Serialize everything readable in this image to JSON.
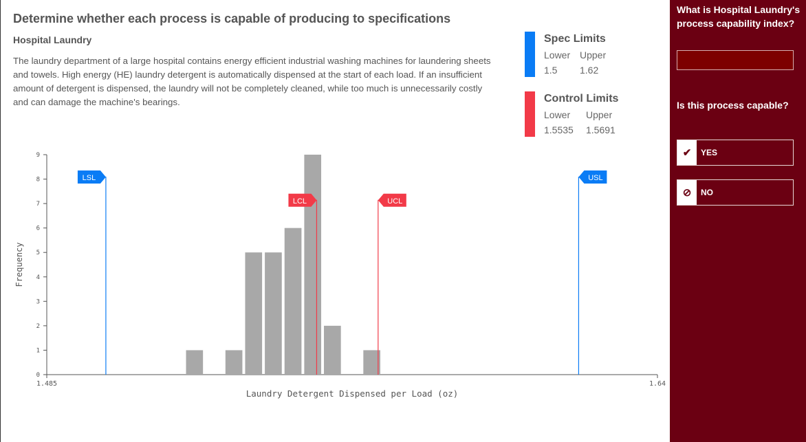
{
  "title": "Determine whether each process is capable of producing to specifications",
  "subtitle": "Hospital Laundry",
  "description": "The laundry department of a large hospital contains energy efficient industrial washing machines for laundering sheets and towels. High energy (HE) laundry detergent is automatically dispensed at the start of each load. If an insufficient amount of detergent is dispensed, the laundry will not be completely cleaned, while too much is unnecessarily costly and can damage the machine's bearings.",
  "legend": {
    "spec": {
      "title": "Spec Limits",
      "lower_label": "Lower",
      "upper_label": "Upper",
      "lower": "1.5",
      "upper": "1.62",
      "color": "#0a7cf5"
    },
    "control": {
      "title": "Control Limits",
      "lower_label": "Lower",
      "upper_label": "Upper",
      "lower": "1.5535",
      "upper": "1.5691",
      "color": "#f23a48"
    }
  },
  "chart_data": {
    "type": "bar",
    "xlabel": "Laundry Detergent Dispensed per Load (oz)",
    "ylabel": "Frequency",
    "xlim": [
      1.485,
      1.64
    ],
    "ylim": [
      0,
      9
    ],
    "x_tick_labels": [
      "1.485",
      "1.64"
    ],
    "y_ticks": [
      0,
      1,
      2,
      3,
      4,
      5,
      6,
      7,
      8,
      9
    ],
    "bin_width": 0.005,
    "bins": [
      {
        "x0": 1.52,
        "value": 1
      },
      {
        "x0": 1.53,
        "value": 1
      },
      {
        "x0": 1.535,
        "value": 5
      },
      {
        "x0": 1.54,
        "value": 5
      },
      {
        "x0": 1.545,
        "value": 6
      },
      {
        "x0": 1.55,
        "value": 9
      },
      {
        "x0": 1.555,
        "value": 2
      },
      {
        "x0": 1.565,
        "value": 1
      }
    ],
    "bar_color": "#a8a8a8",
    "limit_lines": [
      {
        "label": "LSL",
        "value": 1.5,
        "color": "#0a7cf5",
        "flag_y": 8.1,
        "side": "left"
      },
      {
        "label": "USL",
        "value": 1.62,
        "color": "#0a7cf5",
        "flag_y": 8.1,
        "side": "right"
      },
      {
        "label": "LCL",
        "value": 1.5535,
        "color": "#f23a48",
        "flag_y": 7.15,
        "side": "left"
      },
      {
        "label": "UCL",
        "value": 1.5691,
        "color": "#f23a48",
        "flag_y": 7.15,
        "side": "right"
      }
    ]
  },
  "sidebar": {
    "q1": "What is Hospital Laundry's process capability index?",
    "answer_value": "",
    "q2": "Is this process capable?",
    "choices": [
      {
        "label": "YES",
        "icon": "check-icon"
      },
      {
        "label": "NO",
        "icon": "no-icon"
      }
    ]
  }
}
